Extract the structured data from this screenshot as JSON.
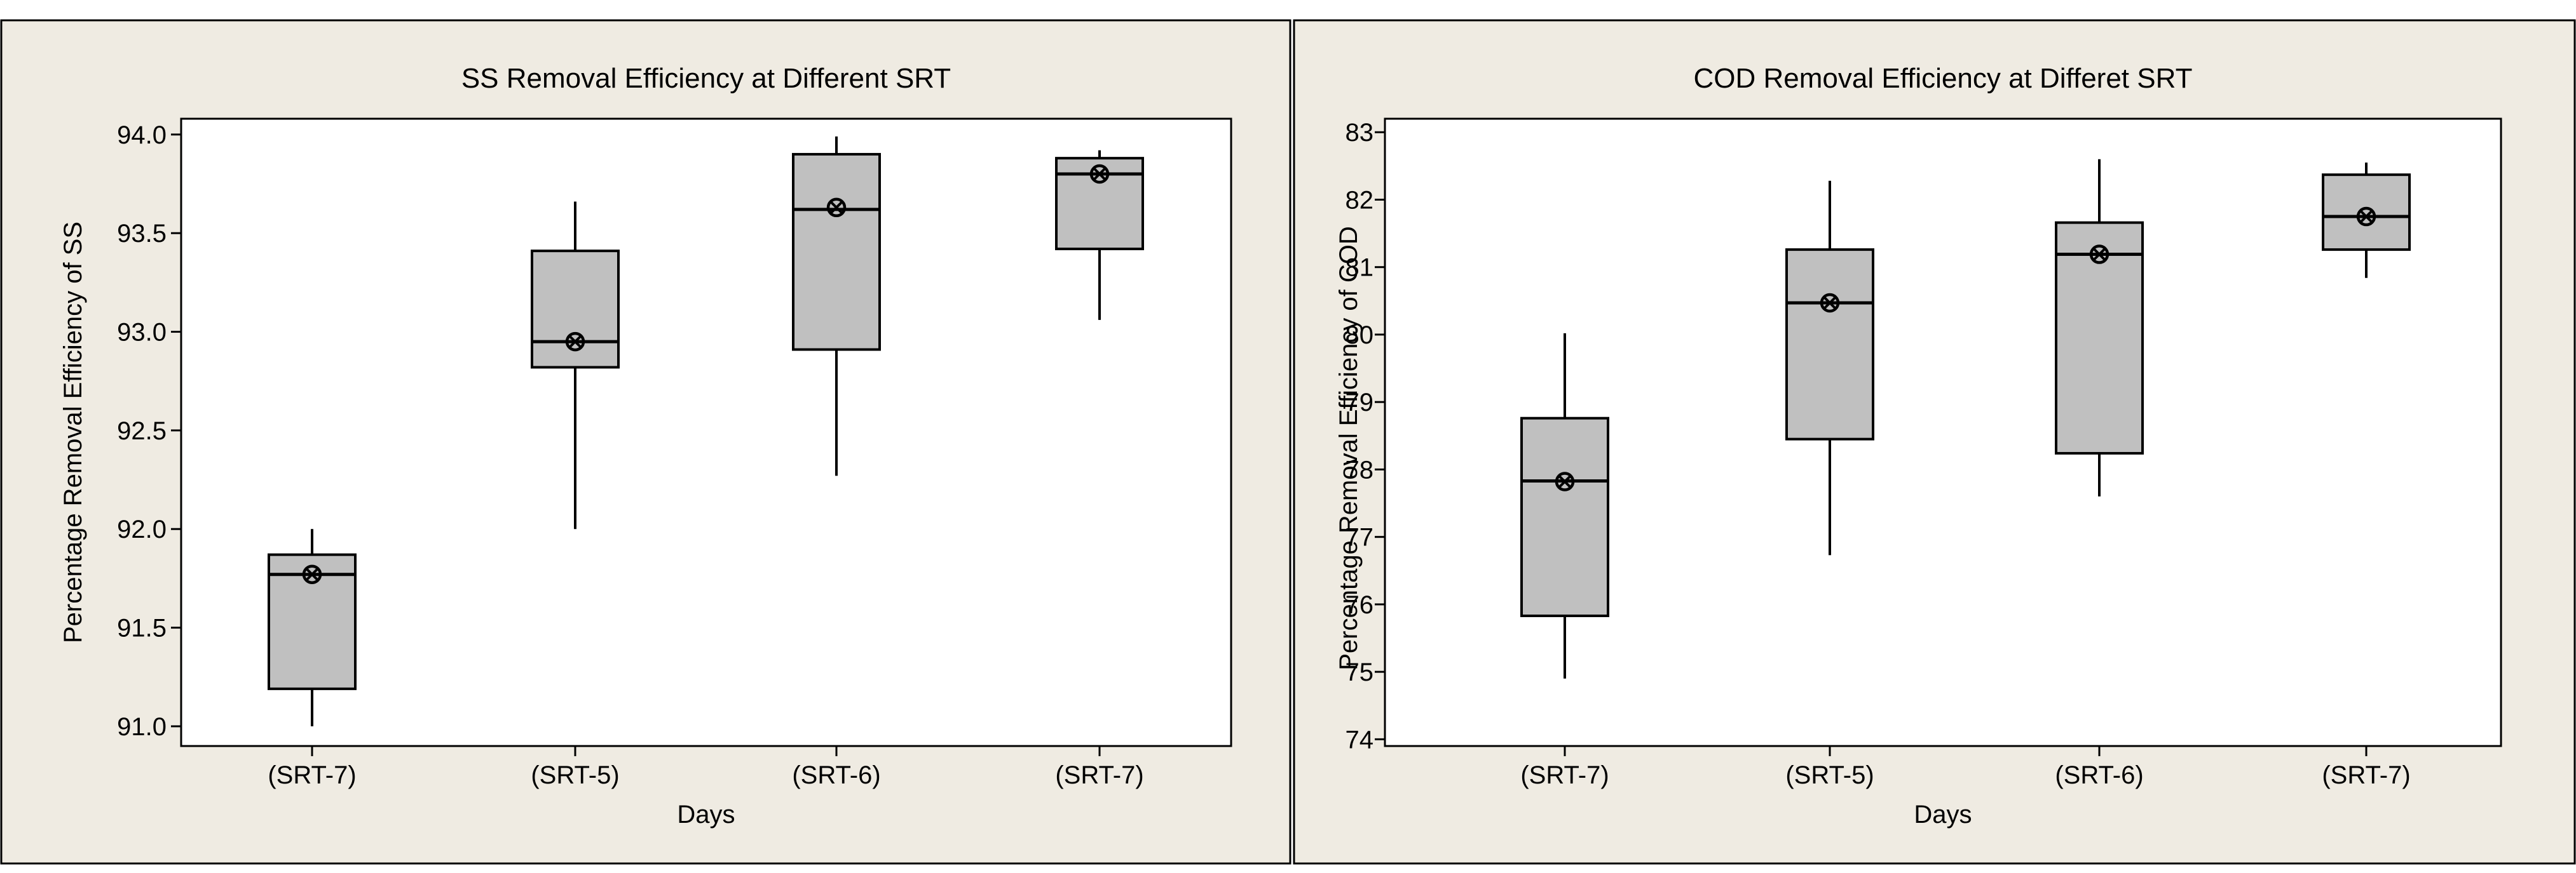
{
  "chart_data": [
    {
      "type": "boxplot",
      "title": "SS Removal Efficiency at Different SRT",
      "xlabel": "Days",
      "ylabel": "Percentage Removal Efficiency of SS",
      "categories": [
        "(SRT-7)",
        "(SRT-5)",
        "(SRT-6)",
        "(SRT-7)"
      ],
      "yticks": [
        "91.0",
        "91.5",
        "92.0",
        "92.5",
        "93.0",
        "93.5",
        "94.0"
      ],
      "ylim": [
        90.9,
        94.08
      ],
      "series": [
        {
          "name": "(SRT-7)",
          "min": 91.0,
          "q1": 91.19,
          "median": 91.77,
          "q3": 91.87,
          "max": 92.0,
          "mean": 91.77
        },
        {
          "name": "(SRT-5)",
          "min": 92.0,
          "q1": 92.82,
          "median": 92.95,
          "q3": 93.41,
          "max": 93.66,
          "mean": 92.95
        },
        {
          "name": "(SRT-6)",
          "min": 92.27,
          "q1": 92.91,
          "median": 93.62,
          "q3": 93.9,
          "max": 93.99,
          "mean": 93.63
        },
        {
          "name": "(SRT-7)",
          "min": 93.06,
          "q1": 93.42,
          "median": 93.8,
          "q3": 93.88,
          "max": 93.92,
          "mean": 93.8
        }
      ]
    },
    {
      "type": "boxplot",
      "title": "COD Removal Efficiency at Differet SRT",
      "xlabel": "Days",
      "ylabel": "Percentage Removal Efficiency of COD",
      "categories": [
        "(SRT-7)",
        "(SRT-5)",
        "(SRT-6)",
        "(SRT-7)"
      ],
      "yticks": [
        "74",
        "75",
        "76",
        "77",
        "78",
        "79",
        "80",
        "81",
        "82",
        "83"
      ],
      "ylim": [
        73.9,
        83.2
      ],
      "series": [
        {
          "name": "(SRT-7)",
          "min": 74.9,
          "q1": 75.83,
          "median": 77.83,
          "q3": 78.76,
          "max": 80.02,
          "mean": 77.82
        },
        {
          "name": "(SRT-5)",
          "min": 76.73,
          "q1": 78.45,
          "median": 80.47,
          "q3": 81.26,
          "max": 82.28,
          "mean": 80.47
        },
        {
          "name": "(SRT-6)",
          "min": 77.6,
          "q1": 78.24,
          "median": 81.19,
          "q3": 81.66,
          "max": 82.6,
          "mean": 81.19
        },
        {
          "name": "(SRT-7)",
          "min": 80.84,
          "q1": 81.26,
          "median": 81.75,
          "q3": 82.37,
          "max": 82.55,
          "mean": 81.75
        }
      ]
    }
  ]
}
